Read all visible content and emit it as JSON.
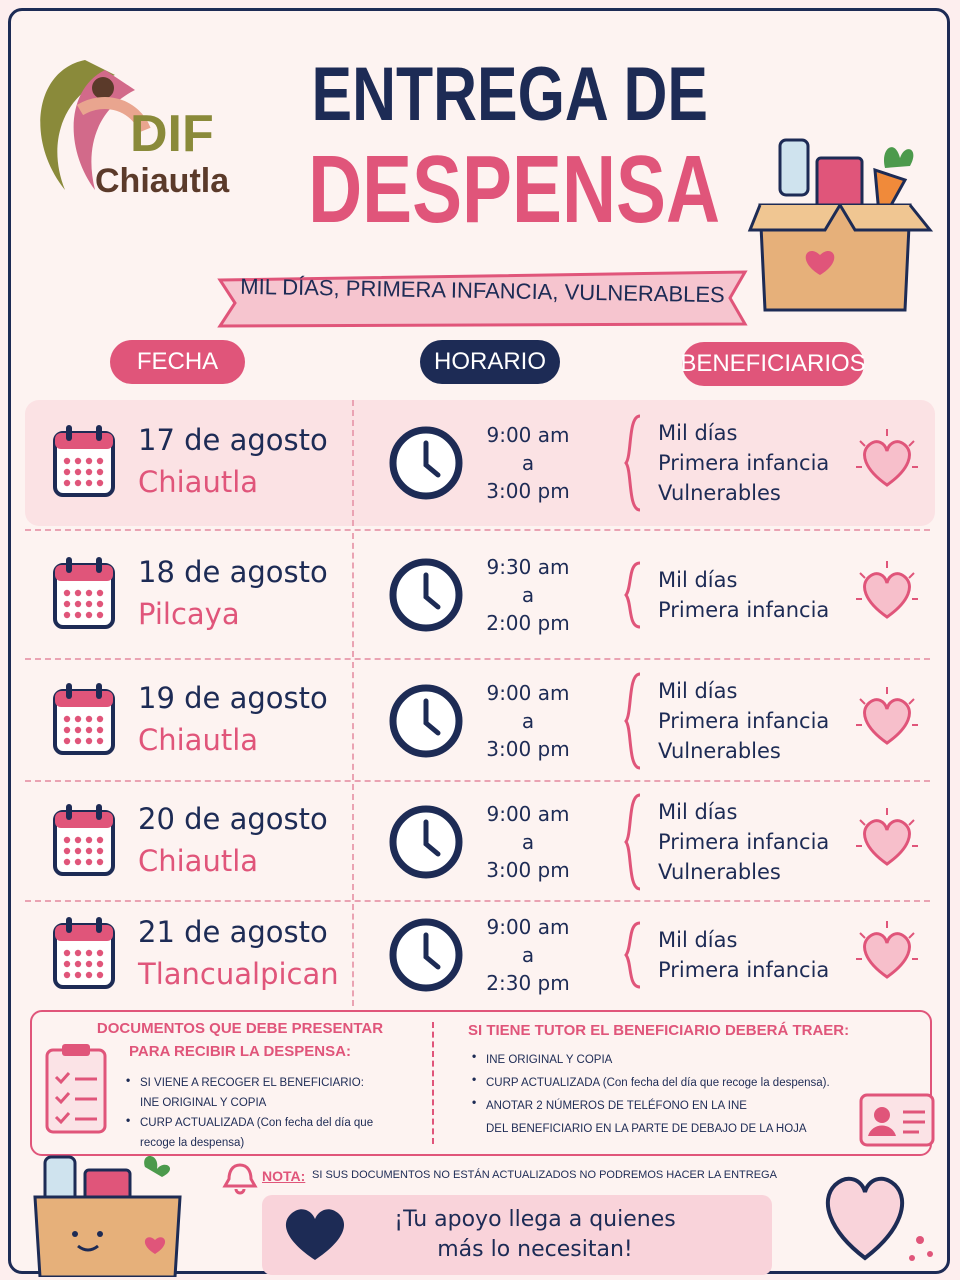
{
  "logo": {
    "line1": "DIF",
    "line2": "Chiautla"
  },
  "header": {
    "title_line1": "ENTREGA DE",
    "title_line2": "DESPENSA",
    "subtitle": "MIL DÍAS, PRIMERA INFANCIA, VULNERABLES"
  },
  "columns": [
    "FECHA",
    "HORARIO",
    "BENEFICIARIOS"
  ],
  "rows": [
    {
      "date": "17 de agosto",
      "place": "Chiautla",
      "time": [
        "9:00 am",
        "a",
        "3:00 pm"
      ],
      "beneficiaries": [
        "Mil días",
        "Primera infancia",
        "Vulnerables"
      ]
    },
    {
      "date": "18 de agosto",
      "place": "Pilcaya",
      "time": [
        "9:30 am",
        "a",
        "2:00 pm"
      ],
      "beneficiaries": [
        "Mil días",
        "Primera infancia"
      ]
    },
    {
      "date": "19 de agosto",
      "place": "Chiautla",
      "time": [
        "9:00 am",
        "a",
        "3:00 pm"
      ],
      "beneficiaries": [
        "Mil días",
        "Primera infancia",
        "Vulnerables"
      ]
    },
    {
      "date": "20 de agosto",
      "place": "Chiautla",
      "time": [
        "9:00 am",
        "a",
        "3:00 pm"
      ],
      "beneficiaries": [
        "Mil días",
        "Primera infancia",
        "Vulnerables"
      ]
    },
    {
      "date": "21 de agosto",
      "place": "Tlancualpican",
      "time": [
        "9:00 am",
        "a",
        "2:30 pm"
      ],
      "beneficiaries": [
        "Mil días",
        "Primera infancia"
      ]
    }
  ],
  "documents": {
    "left": {
      "title_line1": "DOCUMENTOS QUE DEBE PRESENTAR",
      "title_line2": "PARA RECIBIR LA DESPENSA:",
      "items": [
        [
          "SI VIENE A RECOGER EL BENEFICIARIO:",
          "INE ORIGINAL Y COPIA"
        ],
        [
          "CURP ACTUALIZADA (Con fecha del día que",
          "recoge la despensa)"
        ]
      ]
    },
    "right": {
      "title": "SI TIENE TUTOR EL BENEFICIARIO DEBERÁ TRAER:",
      "items": [
        [
          "INE ORIGINAL Y COPIA"
        ],
        [
          "CURP ACTUALIZADA (Con fecha del día que recoge la despensa)."
        ],
        [
          "ANOTAR 2 NÚMEROS DE TELÉFONO EN LA INE",
          "DEL BENEFICIARIO EN LA PARTE DE DEBAJO DE LA HOJA"
        ]
      ]
    }
  },
  "note": {
    "label": "NOTA:",
    "text": "SI SUS DOCUMENTOS NO ESTÁN ACTUALIZADOS NO PODREMOS HACER LA ENTREGA"
  },
  "footer": {
    "line1": "¡Tu apoyo llega a quienes",
    "line2": "más lo necesitan!"
  }
}
